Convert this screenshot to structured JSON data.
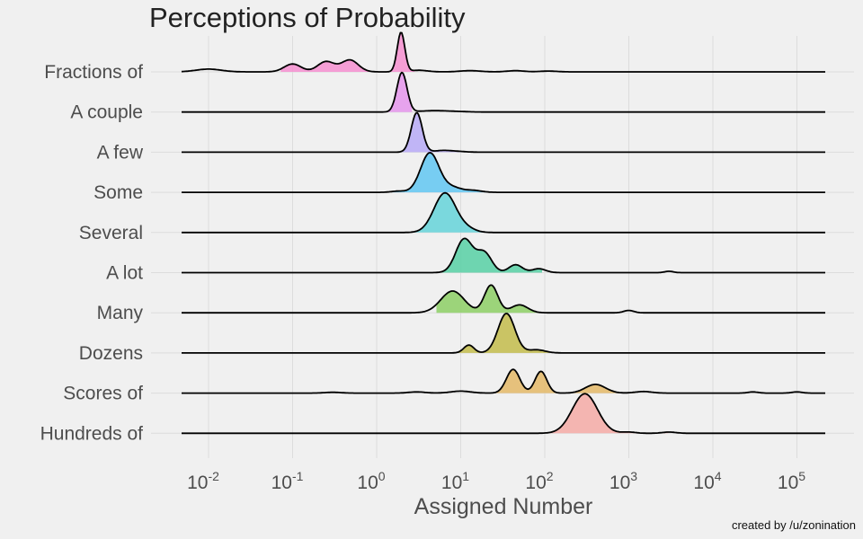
{
  "chart_data": {
    "type": "ridgeline",
    "title": "Perceptions of Probability",
    "xlabel": "Assigned Number",
    "ylabel": "",
    "x_scale": "log10",
    "xlim": [
      0.005,
      200000
    ],
    "x_ticks": [
      {
        "value": 0.01,
        "base": "10",
        "exp": "-2"
      },
      {
        "value": 0.1,
        "base": "10",
        "exp": "-1"
      },
      {
        "value": 1,
        "base": "10",
        "exp": "0"
      },
      {
        "value": 10,
        "base": "10",
        "exp": "1"
      },
      {
        "value": 100,
        "base": "10",
        "exp": "2"
      },
      {
        "value": 1000,
        "base": "10",
        "exp": "3"
      },
      {
        "value": 10000,
        "base": "10",
        "exp": "4"
      },
      {
        "value": 100000,
        "base": "10",
        "exp": "5"
      }
    ],
    "grid": true,
    "legend": "none",
    "credit": "created by /u/zonination",
    "series": [
      {
        "name": "Fractions of",
        "color": "#f68fd0",
        "fill_range": [
          0.07,
          2.9
        ],
        "peaks": [
          [
            0.01,
            0.07,
            0.15
          ],
          [
            0.1,
            0.2,
            0.1
          ],
          [
            0.25,
            0.26,
            0.1
          ],
          [
            0.48,
            0.3,
            0.1
          ],
          [
            1.95,
            1.0,
            0.045
          ],
          [
            3.2,
            0.04,
            0.1
          ],
          [
            13,
            0.03,
            0.12
          ],
          [
            45,
            0.03,
            0.1
          ],
          [
            110,
            0.02,
            0.1
          ]
        ]
      },
      {
        "name": "A couple",
        "color": "#e595ec",
        "fill_range": [
          1.05,
          2.7
        ],
        "peaks": [
          [
            2.0,
            1.0,
            0.06
          ],
          [
            4.5,
            0.03,
            0.15
          ],
          [
            8,
            0.015,
            0.15
          ]
        ]
      },
      {
        "name": "A few",
        "color": "#b7aaf7",
        "fill_range": [
          1.55,
          12
        ],
        "peaks": [
          [
            3.0,
            1.0,
            0.065
          ],
          [
            6,
            0.04,
            0.1
          ],
          [
            9,
            0.02,
            0.1
          ]
        ]
      },
      {
        "name": "Some",
        "color": "#62c7f2",
        "fill_range": [
          1.45,
          20
        ],
        "peaks": [
          [
            4.3,
            1.0,
            0.11
          ],
          [
            8,
            0.12,
            0.1
          ],
          [
            14,
            0.05,
            0.1
          ],
          [
            1.8,
            0.03,
            0.08
          ]
        ]
      },
      {
        "name": "Several",
        "color": "#65d3d9",
        "fill_range": [
          1.9,
          22
        ],
        "peaks": [
          [
            6.5,
            1.0,
            0.13
          ],
          [
            12,
            0.08,
            0.1
          ]
        ]
      },
      {
        "name": "A lot",
        "color": "#57d0a4",
        "fill_range": [
          5,
          95
        ],
        "peaks": [
          [
            11,
            0.85,
            0.1
          ],
          [
            19,
            0.5,
            0.09
          ],
          [
            45,
            0.2,
            0.08
          ],
          [
            85,
            0.1,
            0.08
          ],
          [
            3000,
            0.035,
            0.05
          ]
        ]
      },
      {
        "name": "Many",
        "color": "#8dcf65",
        "fill_range": [
          5,
          90
        ],
        "peaks": [
          [
            8,
            0.55,
            0.14
          ],
          [
            23,
            0.7,
            0.08
          ],
          [
            50,
            0.2,
            0.1
          ],
          [
            1000,
            0.06,
            0.06
          ]
        ]
      },
      {
        "name": "Dozens",
        "color": "#c3bc4b",
        "fill_range": [
          9,
          115
        ],
        "peaks": [
          [
            12.5,
            0.2,
            0.06
          ],
          [
            35,
            1.0,
            0.1
          ],
          [
            80,
            0.08,
            0.1
          ]
        ]
      },
      {
        "name": "Scores of",
        "color": "#e4b967",
        "fill_range": [
          20,
          1200
        ],
        "peaks": [
          [
            42,
            0.6,
            0.08
          ],
          [
            90,
            0.55,
            0.07
          ],
          [
            400,
            0.22,
            0.12
          ],
          [
            1500,
            0.04,
            0.1
          ],
          [
            0.3,
            0.02,
            0.1
          ],
          [
            3,
            0.03,
            0.1
          ],
          [
            10,
            0.05,
            0.12
          ],
          [
            30000,
            0.03,
            0.06
          ],
          [
            100000,
            0.03,
            0.06
          ]
        ]
      },
      {
        "name": "Hundreds of",
        "color": "#f5aaa6",
        "fill_range": [
          60,
          3000
        ],
        "peaks": [
          [
            300,
            1.0,
            0.15
          ],
          [
            1000,
            0.03,
            0.08
          ],
          [
            3000,
            0.03,
            0.08
          ]
        ]
      }
    ]
  }
}
